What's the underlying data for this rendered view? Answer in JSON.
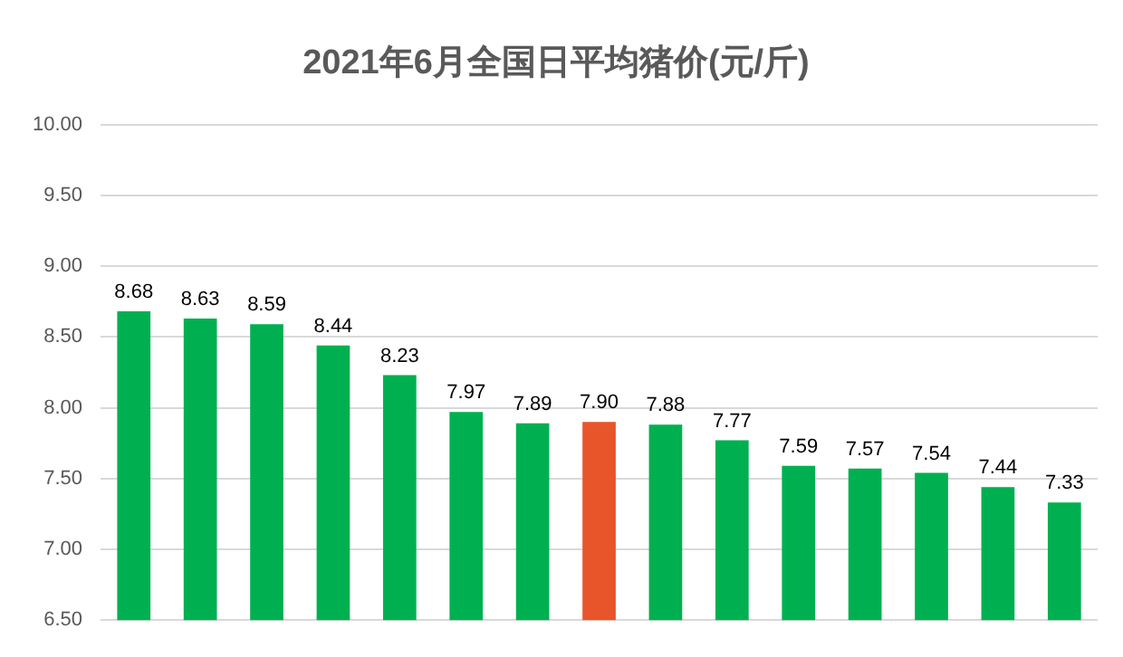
{
  "chart_data": {
    "type": "bar",
    "title": "2021年6月全国日平均猪价(元/斤)",
    "categories": [
      null,
      null,
      null,
      null,
      null,
      null,
      null,
      null,
      null,
      null,
      null,
      null,
      null,
      null,
      null
    ],
    "values": [
      8.68,
      8.63,
      8.59,
      8.44,
      8.23,
      7.97,
      7.89,
      7.9,
      7.88,
      7.77,
      7.59,
      7.57,
      7.54,
      7.44,
      7.33
    ],
    "colors": [
      "#00b050",
      "#00b050",
      "#00b050",
      "#00b050",
      "#00b050",
      "#00b050",
      "#00b050",
      "#e8552a",
      "#00b050",
      "#00b050",
      "#00b050",
      "#00b050",
      "#00b050",
      "#00b050",
      "#00b050"
    ],
    "value_labels": [
      "8.68",
      "8.63",
      "8.59",
      "8.44",
      "8.23",
      "7.97",
      "7.89",
      "7.90",
      "7.88",
      "7.77",
      "7.59",
      "7.57",
      "7.54",
      "7.44",
      "7.33"
    ],
    "ylim": [
      6.5,
      10
    ],
    "yticks": [
      {
        "value": 6.5,
        "label": "6.50"
      },
      {
        "value": 7,
        "label": "7.00"
      },
      {
        "value": 7.5,
        "label": "7.50"
      },
      {
        "value": 8,
        "label": "8.00"
      },
      {
        "value": 8.5,
        "label": "8.50"
      },
      {
        "value": 9,
        "label": "9.00"
      },
      {
        "value": 9.5,
        "label": "9.50"
      },
      {
        "value": 10,
        "label": "10.00"
      }
    ],
    "grid": "y",
    "legend": false
  }
}
